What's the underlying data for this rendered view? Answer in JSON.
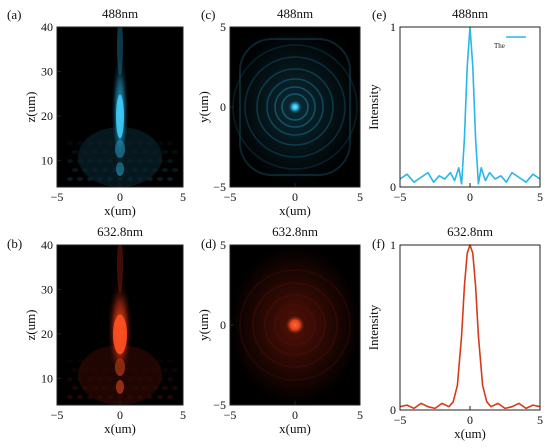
{
  "chart_data": [
    {
      "panel": "(a)",
      "type": "heatmap",
      "title": "488nm",
      "xlabel": "x(um)",
      "ylabel": "z(um)",
      "xlim": [
        -5,
        5
      ],
      "ylim": [
        4,
        40
      ],
      "xticks": [
        -5,
        0,
        5
      ],
      "yticks": [
        10,
        20,
        30,
        40
      ],
      "colormap": [
        "#000000",
        "#0e3b4a",
        "#27b7e6"
      ],
      "description_values": {
        "beam_center_x": 0,
        "beam_peak_z": 21
      }
    },
    {
      "panel": "(c)",
      "type": "heatmap",
      "title": "488nm",
      "xlabel": "x(um)",
      "ylabel": "y(um)",
      "xlim": [
        -5,
        5
      ],
      "ylim": [
        -5,
        5
      ],
      "xticks": [
        -5,
        0,
        5
      ],
      "yticks": [
        -5,
        0,
        5
      ],
      "colormap": [
        "#000000",
        "#0e3b4a",
        "#27b7e6"
      ],
      "description_values": {
        "spot_center": [
          0,
          0
        ]
      }
    },
    {
      "panel": "(e)",
      "type": "line",
      "title": "488nm",
      "xlabel": "",
      "ylabel": "Intensity",
      "xlim": [
        -5,
        5
      ],
      "ylim": [
        0,
        1
      ],
      "xticks": [
        -5,
        0,
        5
      ],
      "yticks": [
        0,
        1
      ],
      "legend": {
        "placement": "top-right",
        "label": "The"
      },
      "series": [
        {
          "color": "#29b6e8",
          "x": [
            -5,
            -4.5,
            -4,
            -3.5,
            -3,
            -2.6,
            -2.2,
            -1.8,
            -1.4,
            -1.1,
            -0.8,
            -0.6,
            -0.4,
            -0.2,
            0,
            0.2,
            0.4,
            0.6,
            0.8,
            1.1,
            1.4,
            1.8,
            2.2,
            2.6,
            3,
            3.5,
            4,
            4.5,
            5
          ],
          "y": [
            0.05,
            0.08,
            0.03,
            0.06,
            0.09,
            0.03,
            0.07,
            0.05,
            0.09,
            0.04,
            0.12,
            0.02,
            0.3,
            0.75,
            1.0,
            0.75,
            0.3,
            0.02,
            0.12,
            0.04,
            0.09,
            0.05,
            0.07,
            0.03,
            0.09,
            0.06,
            0.03,
            0.08,
            0.05
          ]
        }
      ]
    },
    {
      "panel": "(b)",
      "type": "heatmap",
      "title": "632.8nm",
      "xlabel": "x(um)",
      "ylabel": "z(um)",
      "xlim": [
        -5,
        5
      ],
      "ylim": [
        4,
        40
      ],
      "xticks": [
        -5,
        0,
        5
      ],
      "yticks": [
        10,
        20,
        30,
        40
      ],
      "colormap": [
        "#000000",
        "#4a0d05",
        "#ff4a1a"
      ],
      "description_values": {
        "beam_center_x": 0,
        "beam_peak_z": 21
      }
    },
    {
      "panel": "(d)",
      "type": "heatmap",
      "title": "632.8nm",
      "xlabel": "x(um)",
      "ylabel": "y(um)",
      "xlim": [
        -5,
        5
      ],
      "ylim": [
        -5,
        5
      ],
      "xticks": [
        -5,
        0,
        5
      ],
      "yticks": [
        -5,
        0,
        5
      ],
      "colormap": [
        "#000000",
        "#4a0d05",
        "#ff4a1a"
      ],
      "description_values": {
        "spot_center": [
          0,
          0
        ]
      }
    },
    {
      "panel": "(f)",
      "type": "line",
      "title": "632.8nm",
      "xlabel": "x(um)",
      "ylabel": "Intensity",
      "xlim": [
        -5,
        5
      ],
      "ylim": [
        0,
        1
      ],
      "xticks": [
        -5,
        0,
        5
      ],
      "yticks": [
        0,
        1
      ],
      "series": [
        {
          "color": "#d73a1a",
          "x": [
            -5,
            -4.5,
            -4,
            -3.5,
            -3,
            -2.5,
            -2,
            -1.5,
            -1.2,
            -0.9,
            -0.6,
            -0.4,
            -0.2,
            0,
            0.2,
            0.4,
            0.6,
            0.9,
            1.2,
            1.5,
            2,
            2.5,
            3,
            3.5,
            4,
            4.5,
            5
          ],
          "y": [
            0.02,
            0.03,
            0.01,
            0.04,
            0.02,
            0.01,
            0.04,
            0.02,
            0.05,
            0.15,
            0.45,
            0.75,
            0.95,
            1.0,
            0.95,
            0.75,
            0.45,
            0.15,
            0.05,
            0.02,
            0.04,
            0.01,
            0.02,
            0.04,
            0.01,
            0.03,
            0.02
          ]
        }
      ]
    }
  ]
}
